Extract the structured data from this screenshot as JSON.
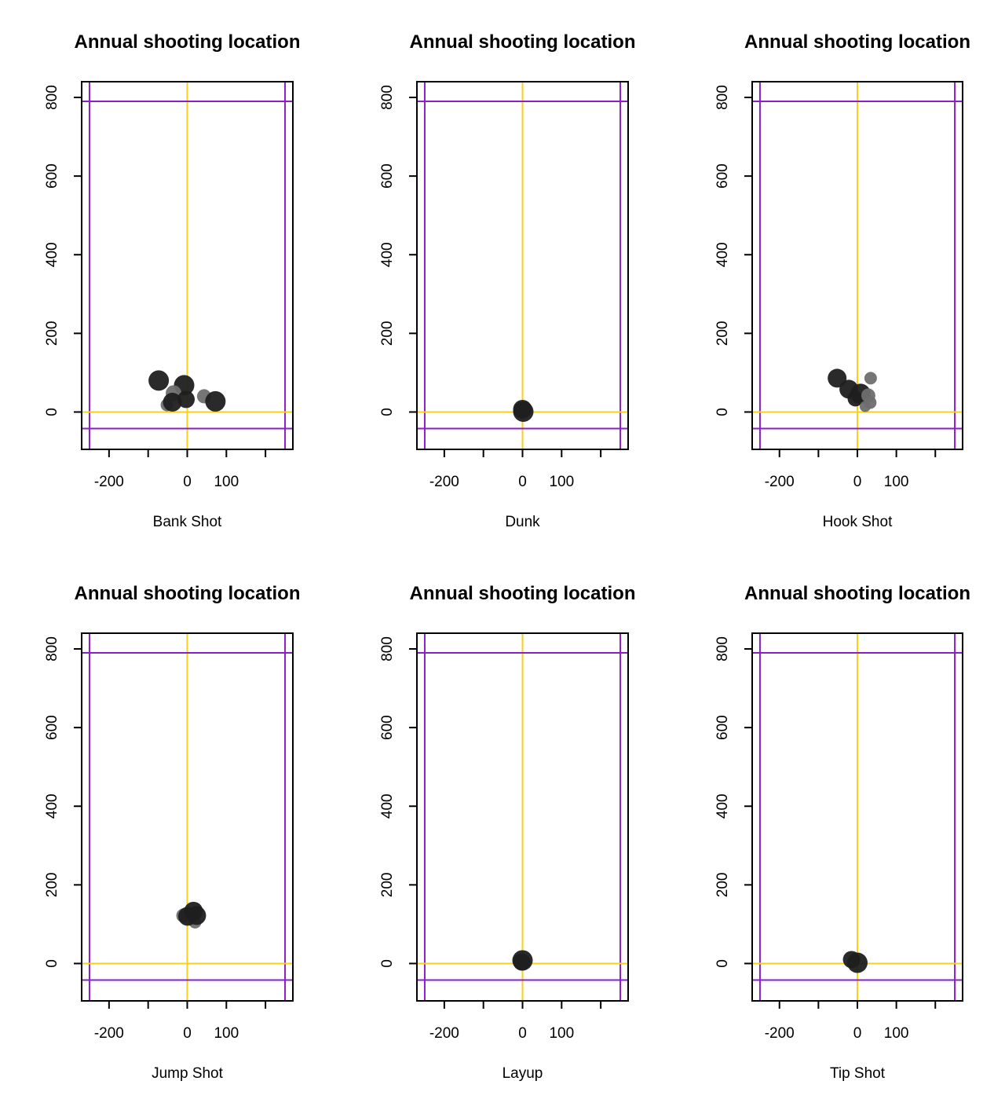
{
  "colors": {
    "court_line": "#8a1fc7",
    "axis_zero_line": "#f7d117",
    "point_dark": "#1f1f1f",
    "point_light": "#6e6e6e",
    "frame": "#000000"
  },
  "chart_data": [
    {
      "type": "scatter",
      "title": "Annual shooting location",
      "xlabel": "Bank Shot",
      "ylabel": "",
      "xlim": [
        -270,
        270
      ],
      "ylim": [
        -95,
        840
      ],
      "x_ticks": [
        -200,
        -100,
        0,
        100,
        200
      ],
      "x_tick_labels": [
        "-200",
        "",
        "0",
        "100",
        ""
      ],
      "y_ticks": [
        0,
        200,
        400,
        600,
        800
      ],
      "y_tick_labels": [
        "0",
        "200",
        "400",
        "600",
        "800"
      ],
      "grid": false,
      "reference_lines": {
        "vertical": [
          -250,
          0,
          250
        ],
        "horizontal": [
          -42,
          0,
          790
        ]
      },
      "points": [
        {
          "x": -73,
          "y": 80,
          "size": 13,
          "shade": "dark"
        },
        {
          "x": -8,
          "y": 68,
          "size": 13,
          "shade": "dark"
        },
        {
          "x": -35,
          "y": 48,
          "size": 10,
          "shade": "light"
        },
        {
          "x": -52,
          "y": 18,
          "size": 8,
          "shade": "light"
        },
        {
          "x": -38,
          "y": 25,
          "size": 12,
          "shade": "dark"
        },
        {
          "x": -3,
          "y": 32,
          "size": 11,
          "shade": "dark"
        },
        {
          "x": 43,
          "y": 40,
          "size": 9,
          "shade": "light"
        },
        {
          "x": 72,
          "y": 27,
          "size": 13,
          "shade": "dark"
        }
      ]
    },
    {
      "type": "scatter",
      "title": "Annual shooting location",
      "xlabel": "Dunk",
      "ylabel": "",
      "xlim": [
        -270,
        270
      ],
      "ylim": [
        -95,
        840
      ],
      "x_ticks": [
        -200,
        -100,
        0,
        100,
        200
      ],
      "x_tick_labels": [
        "-200",
        "",
        "0",
        "100",
        ""
      ],
      "y_ticks": [
        0,
        200,
        400,
        600,
        800
      ],
      "y_tick_labels": [
        "0",
        "200",
        "400",
        "600",
        "800"
      ],
      "grid": false,
      "reference_lines": {
        "vertical": [
          -250,
          0,
          250
        ],
        "horizontal": [
          -42,
          0,
          790
        ]
      },
      "points": [
        {
          "x": 0,
          "y": 7,
          "size": 12,
          "shade": "dark"
        },
        {
          "x": 2,
          "y": 1,
          "size": 13,
          "shade": "dark"
        }
      ]
    },
    {
      "type": "scatter",
      "title": "Annual shooting location",
      "xlabel": "Hook Shot",
      "ylabel": "",
      "xlim": [
        -270,
        270
      ],
      "ylim": [
        -95,
        840
      ],
      "x_ticks": [
        -200,
        -100,
        0,
        100,
        200
      ],
      "x_tick_labels": [
        "-200",
        "",
        "0",
        "100",
        ""
      ],
      "y_ticks": [
        0,
        200,
        400,
        600,
        800
      ],
      "y_tick_labels": [
        "0",
        "200",
        "400",
        "600",
        "800"
      ],
      "grid": false,
      "reference_lines": {
        "vertical": [
          -250,
          0,
          250
        ],
        "horizontal": [
          -42,
          0,
          790
        ]
      },
      "points": [
        {
          "x": -52,
          "y": 86,
          "size": 12,
          "shade": "dark"
        },
        {
          "x": -22,
          "y": 58,
          "size": 12,
          "shade": "dark"
        },
        {
          "x": 34,
          "y": 86,
          "size": 8,
          "shade": "light"
        },
        {
          "x": 8,
          "y": 46,
          "size": 13,
          "shade": "dark"
        },
        {
          "x": -5,
          "y": 34,
          "size": 10,
          "shade": "dark"
        },
        {
          "x": 28,
          "y": 42,
          "size": 9,
          "shade": "light"
        },
        {
          "x": 33,
          "y": 24,
          "size": 8,
          "shade": "light"
        },
        {
          "x": 20,
          "y": 14,
          "size": 7,
          "shade": "light"
        }
      ]
    },
    {
      "type": "scatter",
      "title": "Annual shooting location",
      "xlabel": "Jump Shot",
      "ylabel": "",
      "xlim": [
        -270,
        270
      ],
      "ylim": [
        -95,
        840
      ],
      "x_ticks": [
        -200,
        -100,
        0,
        100,
        200
      ],
      "x_tick_labels": [
        "-200",
        "",
        "0",
        "100",
        ""
      ],
      "y_ticks": [
        0,
        200,
        400,
        600,
        800
      ],
      "y_tick_labels": [
        "0",
        "200",
        "400",
        "600",
        "800"
      ],
      "grid": false,
      "reference_lines": {
        "vertical": [
          -250,
          0,
          250
        ],
        "horizontal": [
          -42,
          0,
          790
        ]
      },
      "points": [
        {
          "x": -10,
          "y": 122,
          "size": 9,
          "shade": "light"
        },
        {
          "x": 20,
          "y": 105,
          "size": 8,
          "shade": "light"
        },
        {
          "x": 1,
          "y": 120,
          "size": 12,
          "shade": "dark"
        },
        {
          "x": 16,
          "y": 133,
          "size": 12,
          "shade": "dark"
        },
        {
          "x": 24,
          "y": 122,
          "size": 12,
          "shade": "dark"
        }
      ]
    },
    {
      "type": "scatter",
      "title": "Annual shooting location",
      "xlabel": "Layup",
      "ylabel": "",
      "xlim": [
        -270,
        270
      ],
      "ylim": [
        -95,
        840
      ],
      "x_ticks": [
        -200,
        -100,
        0,
        100,
        200
      ],
      "x_tick_labels": [
        "-200",
        "",
        "0",
        "100",
        ""
      ],
      "y_ticks": [
        0,
        200,
        400,
        600,
        800
      ],
      "y_tick_labels": [
        "0",
        "200",
        "400",
        "600",
        "800"
      ],
      "grid": false,
      "reference_lines": {
        "vertical": [
          -250,
          0,
          250
        ],
        "horizontal": [
          -42,
          0,
          790
        ]
      },
      "points": [
        {
          "x": 0,
          "y": 8,
          "size": 13,
          "shade": "dark"
        },
        {
          "x": -2,
          "y": 4,
          "size": 11,
          "shade": "dark"
        }
      ]
    },
    {
      "type": "scatter",
      "title": "Annual shooting location",
      "xlabel": "Tip Shot",
      "ylabel": "",
      "xlim": [
        -270,
        270
      ],
      "ylim": [
        -95,
        840
      ],
      "x_ticks": [
        -200,
        -100,
        0,
        100,
        200
      ],
      "x_tick_labels": [
        "-200",
        "",
        "0",
        "100",
        ""
      ],
      "y_ticks": [
        0,
        200,
        400,
        600,
        800
      ],
      "y_tick_labels": [
        "0",
        "200",
        "400",
        "600",
        "800"
      ],
      "grid": false,
      "reference_lines": {
        "vertical": [
          -250,
          0,
          250
        ],
        "horizontal": [
          -42,
          0,
          790
        ]
      },
      "points": [
        {
          "x": -15,
          "y": 10,
          "size": 11,
          "shade": "dark"
        },
        {
          "x": 0,
          "y": 2,
          "size": 13,
          "shade": "dark"
        }
      ]
    }
  ]
}
